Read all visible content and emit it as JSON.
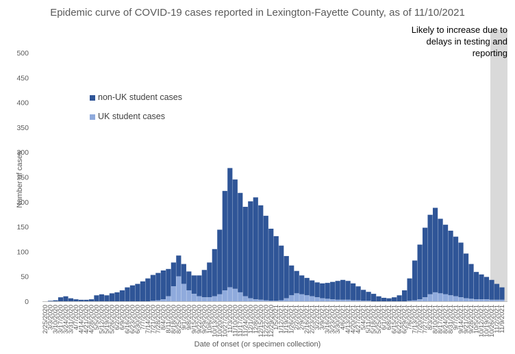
{
  "chart_data": {
    "type": "bar",
    "stacked": true,
    "title": "Epidemic curve of COVID-19 cases reported in Lexington-Fayette County, as of 11/10/2021",
    "xlabel": "Date of onset (or specimen collection)",
    "ylabel": "Number of cases",
    "ylim": [
      0,
      500
    ],
    "y_ticks": [
      0,
      50,
      100,
      150,
      200,
      250,
      300,
      350,
      400,
      450,
      500
    ],
    "grid": false,
    "legend_position": "upper-left",
    "x_tick_labels": [
      "2/25/2020",
      "3/3/2020",
      "3/10/2020",
      "3/17/2020",
      "3/24/2020",
      "3/31/2020",
      "4/7/2020",
      "4/14/2020",
      "4/21/2020",
      "4/28/2020",
      "5/5/2020",
      "5/12/2020",
      "5/19/2020",
      "5/26/2020",
      "6/2/2020",
      "6/9/2020",
      "6/16/2020",
      "6/23/2020",
      "6/30/2020",
      "7/7/2020",
      "7/14/2020",
      "7/21/2020",
      "7/28/2020",
      "8/4/2020",
      "8/11/2020",
      "8/18/2020",
      "8/25/2020",
      "9/1/2020",
      "9/8/2020",
      "9/15/2020",
      "9/22/2020",
      "9/29/2020",
      "10/6/2020",
      "10/13/2020",
      "10/20/2020",
      "10/27/2020",
      "11/3/2020",
      "11/10/2020",
      "11/17/2020",
      "11/24/2020",
      "12/1/2020",
      "12/8/2020",
      "12/15/2020",
      "12/22/2020",
      "12/29/2020",
      "1/5/2021",
      "1/12/2021",
      "1/19/2021",
      "1/26/2021",
      "2/2/2021",
      "2/9/2021",
      "2/16/2021",
      "2/23/2021",
      "3/2/2021",
      "3/9/2021",
      "3/16/2021",
      "3/23/2021",
      "3/30/2021",
      "4/6/2021",
      "4/13/2021",
      "4/20/2021",
      "4/27/2021",
      "5/4/2021",
      "5/11/2021",
      "5/18/2021",
      "5/25/2021",
      "6/1/2021",
      "6/8/2021",
      "6/15/2021",
      "6/22/2021",
      "6/29/2021",
      "7/6/2021",
      "7/13/2021",
      "7/20/2021",
      "7/27/2021",
      "8/3/2021",
      "8/10/2021",
      "8/17/2021",
      "8/24/2021",
      "8/31/2021",
      "9/7/2021",
      "9/14/2021",
      "9/21/2021",
      "9/28/2021",
      "10/5/2021",
      "10/12/2021",
      "10/19/2021",
      "10/26/2021",
      "11/2/2021",
      "11/9/2021"
    ],
    "series": [
      {
        "name": "non-UK student cases",
        "color": "#2f5597",
        "values": [
          0,
          1,
          2,
          8,
          10,
          6,
          4,
          3,
          3,
          4,
          12,
          14,
          12,
          16,
          18,
          22,
          28,
          32,
          35,
          40,
          46,
          52,
          55,
          58,
          55,
          48,
          42,
          40,
          38,
          37,
          42,
          55,
          70,
          95,
          130,
          200,
          240,
          220,
          200,
          180,
          195,
          205,
          190,
          170,
          145,
          130,
          110,
          85,
          60,
          45,
          38,
          35,
          32,
          30,
          30,
          32,
          35,
          38,
          40,
          38,
          34,
          28,
          22,
          18,
          15,
          10,
          7,
          6,
          8,
          12,
          22,
          45,
          80,
          110,
          140,
          160,
          170,
          150,
          140,
          130,
          120,
          110,
          90,
          70,
          55,
          50,
          45,
          40,
          32,
          25
        ]
      },
      {
        "name": "UK student cases",
        "color": "#8faadc",
        "values": [
          0,
          0,
          0,
          0,
          0,
          0,
          0,
          0,
          0,
          0,
          0,
          0,
          0,
          0,
          0,
          0,
          0,
          0,
          0,
          0,
          0,
          1,
          2,
          4,
          10,
          30,
          50,
          35,
          22,
          15,
          10,
          8,
          8,
          10,
          14,
          22,
          28,
          25,
          18,
          10,
          6,
          4,
          3,
          2,
          1,
          1,
          2,
          6,
          12,
          16,
          14,
          12,
          10,
          8,
          6,
          5,
          4,
          3,
          3,
          3,
          2,
          2,
          1,
          1,
          0,
          0,
          0,
          0,
          0,
          0,
          0,
          1,
          2,
          4,
          8,
          14,
          18,
          16,
          14,
          12,
          10,
          8,
          6,
          5,
          4,
          4,
          4,
          3,
          3,
          3
        ]
      }
    ],
    "shaded_region": {
      "x_start": "10/27/2021",
      "x_end": "11/10/2021",
      "color": "#d9d9d9",
      "label": [
        "Likely to increase due to",
        "delays in testing and",
        "reporting"
      ]
    }
  }
}
